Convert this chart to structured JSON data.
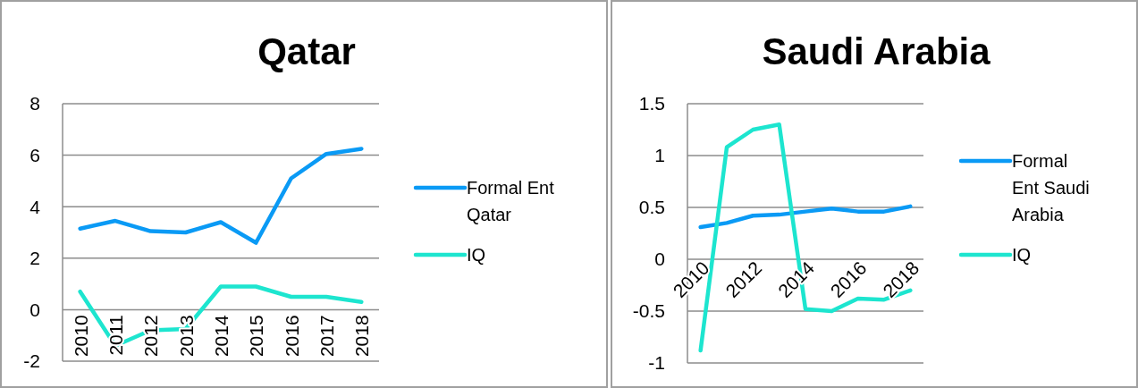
{
  "chart_data": [
    {
      "type": "line",
      "title": "Qatar",
      "categories": [
        "2010",
        "2011",
        "2012",
        "2013",
        "2014",
        "2015",
        "2016",
        "2017",
        "2018"
      ],
      "series": [
        {
          "name": "Formal Ent Qatar",
          "color": "#0a9af5",
          "values": [
            3.15,
            3.45,
            3.05,
            3.0,
            3.4,
            2.6,
            5.1,
            6.05,
            6.25
          ]
        },
        {
          "name": "IQ",
          "color": "#1de5cf",
          "values": [
            0.7,
            -1.4,
            -0.8,
            -0.75,
            0.9,
            0.9,
            0.5,
            0.5,
            0.3
          ]
        }
      ],
      "ylim": [
        -2,
        8
      ],
      "yticks": [
        -2,
        0,
        2,
        4,
        6,
        8
      ],
      "grid": "y",
      "legend": "right",
      "line_style": "solid",
      "marker": "none"
    },
    {
      "type": "line",
      "title": "Saudi Arabia",
      "categories": [
        "2010",
        null,
        "2012",
        null,
        "2014",
        null,
        "2016",
        null,
        "2018"
      ],
      "series": [
        {
          "name": "Formal Ent Saudi Arabia",
          "color": "#0a9af5",
          "values": [
            0.31,
            0.35,
            0.42,
            0.43,
            0.46,
            0.49,
            0.46,
            0.46,
            0.51
          ]
        },
        {
          "name": "IQ",
          "color": "#1de5cf",
          "values": [
            -0.88,
            1.08,
            1.25,
            1.3,
            -0.48,
            -0.5,
            -0.38,
            -0.39,
            -0.3
          ]
        }
      ],
      "ylim": [
        -1,
        1.5
      ],
      "yticks": [
        -1,
        -0.5,
        0,
        0.5,
        1,
        1.5
      ],
      "grid": "y",
      "legend": "right",
      "line_style": "solid",
      "marker": "none"
    }
  ]
}
